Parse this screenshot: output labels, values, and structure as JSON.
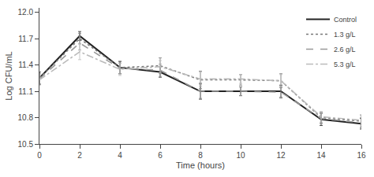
{
  "chart_data": {
    "type": "line",
    "x": [
      0,
      2,
      4,
      6,
      8,
      10,
      12,
      14,
      16
    ],
    "series": [
      {
        "name": "Control",
        "color": "#222222",
        "line_style": "solid",
        "values": [
          11.25,
          11.73,
          11.37,
          11.32,
          11.1,
          11.1,
          11.1,
          10.78,
          10.73
        ],
        "errors": [
          0.07,
          0.05,
          0.07,
          0.06,
          0.09,
          0.05,
          0.07,
          0.07,
          0.06
        ]
      },
      {
        "name": "1.3 g/L",
        "color": "#777777",
        "line_style": "dotted",
        "values": [
          11.25,
          11.7,
          11.37,
          11.39,
          11.23,
          11.23,
          11.22,
          10.8,
          10.76
        ],
        "errors": [
          0.07,
          0.06,
          0.07,
          0.09,
          0.1,
          0.06,
          0.08,
          0.06,
          0.07
        ]
      },
      {
        "name": "2.6 g/L",
        "color": "#999999",
        "line_style": "dashed",
        "values": [
          11.24,
          11.65,
          11.36,
          11.34,
          11.1,
          11.1,
          11.09,
          10.79,
          10.74
        ],
        "errors": [
          0.06,
          0.08,
          0.06,
          0.07,
          0.08,
          0.05,
          0.07,
          0.06,
          0.06
        ]
      },
      {
        "name": "5.3 g/L",
        "color": "#bbbbbb",
        "line_style": "dashdot",
        "values": [
          11.23,
          11.55,
          11.35,
          11.38,
          11.24,
          11.24,
          11.22,
          10.81,
          10.77
        ],
        "errors": [
          0.06,
          0.09,
          0.07,
          0.07,
          0.08,
          0.05,
          0.07,
          0.06,
          0.06
        ]
      }
    ],
    "xlabel": "Time (hours)",
    "ylabel": "Log CFU/mL",
    "xlim": [
      0,
      16
    ],
    "xticks": [
      0,
      2,
      4,
      6,
      8,
      10,
      12,
      14,
      16
    ],
    "ylim": [
      10.5,
      12.05
    ],
    "yticks": [
      10.5,
      10.8,
      11.1,
      11.4,
      11.7,
      {
        "value": 12.0,
        "label": "12.0"
      }
    ],
    "grid": false,
    "legend": "upper right"
  }
}
